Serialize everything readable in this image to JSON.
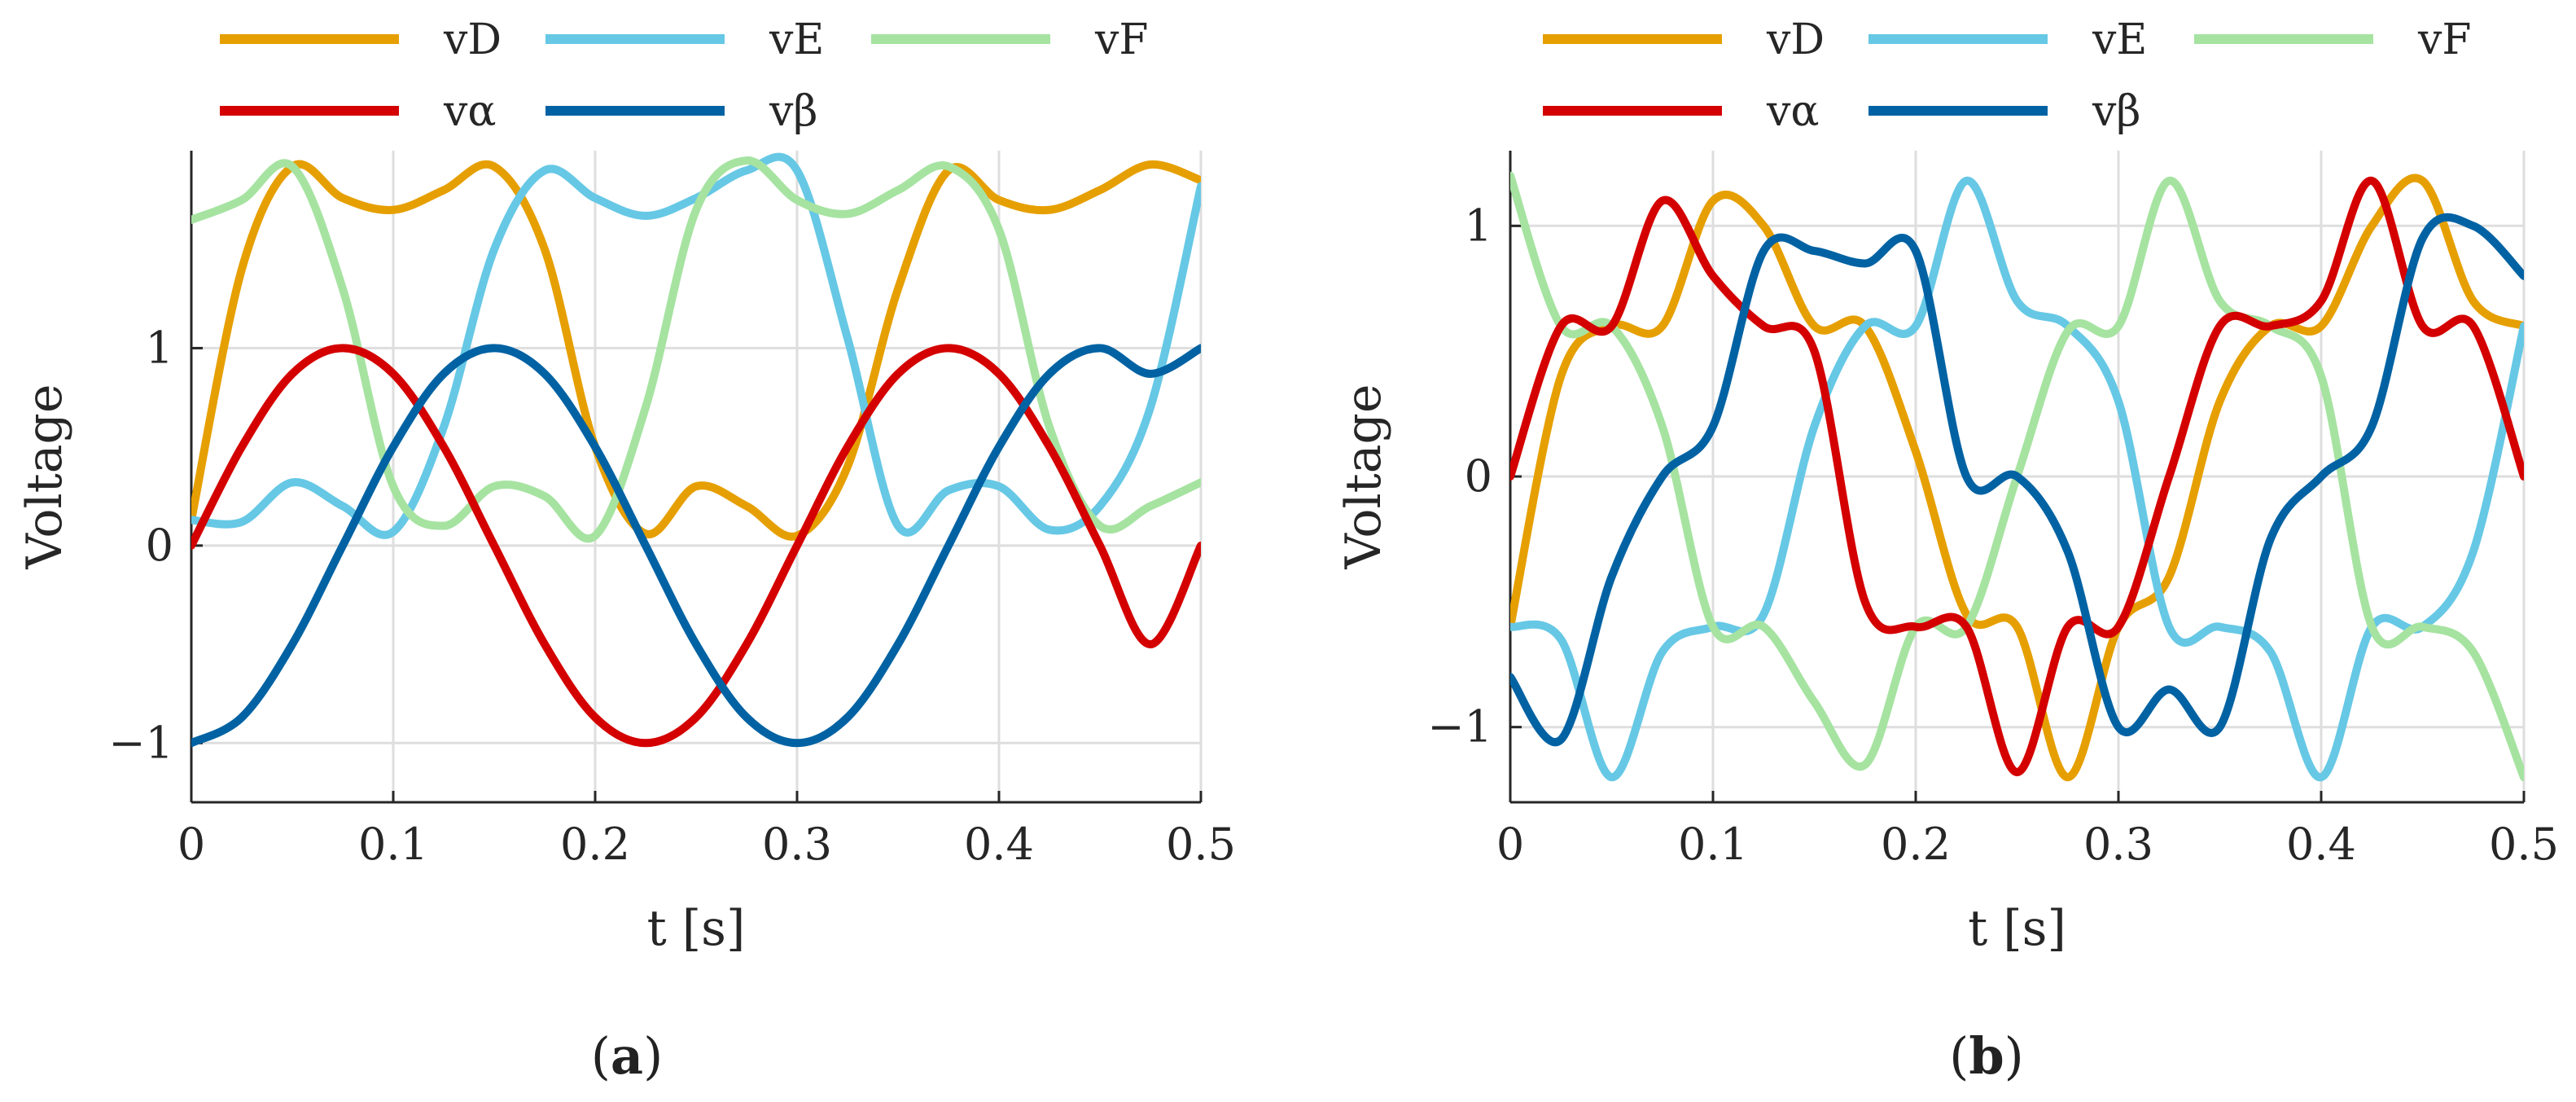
{
  "chart_data": [
    {
      "type": "line",
      "panel_label": "a",
      "xlabel": "t [s]",
      "ylabel": "Voltage",
      "xlim": [
        0,
        0.5
      ],
      "ylim": [
        -1.3,
        2.0
      ],
      "xticks": [
        0,
        0.1,
        0.2,
        0.3,
        0.4,
        0.5
      ],
      "xtick_labels": [
        "0",
        "0.1",
        "0.2",
        "0.3",
        "0.4",
        "0.5"
      ],
      "yticks": [
        -1,
        0,
        1
      ],
      "ytick_labels": [
        "−1",
        "0",
        "1"
      ],
      "grid": true,
      "legend_position": "top",
      "legend_columns": 3,
      "x": [
        0,
        0.025,
        0.05,
        0.075,
        0.1,
        0.125,
        0.15,
        0.175,
        0.2,
        0.225,
        0.25,
        0.275,
        0.3,
        0.325,
        0.35,
        0.375,
        0.4,
        0.425,
        0.45,
        0.475,
        0.5
      ],
      "series": [
        {
          "name": "vD",
          "color": "#E69F00",
          "values": [
            0.13,
            1.4,
            1.92,
            1.76,
            1.7,
            1.8,
            1.92,
            1.5,
            0.5,
            0.06,
            0.3,
            0.2,
            0.05,
            0.4,
            1.3,
            1.9,
            1.75,
            1.7,
            1.8,
            1.93,
            1.85
          ]
        },
        {
          "name": "vE",
          "color": "#66C8E5",
          "values": [
            0.13,
            0.12,
            0.32,
            0.2,
            0.07,
            0.6,
            1.5,
            1.9,
            1.76,
            1.67,
            1.76,
            1.9,
            1.9,
            1.05,
            0.1,
            0.28,
            0.3,
            0.08,
            0.2,
            0.7,
            1.82
          ]
        },
        {
          "name": "vF",
          "color": "#A6E3A1",
          "values": [
            1.65,
            1.75,
            1.92,
            1.3,
            0.3,
            0.1,
            0.3,
            0.25,
            0.05,
            0.7,
            1.7,
            1.95,
            1.75,
            1.68,
            1.8,
            1.92,
            1.6,
            0.6,
            0.1,
            0.2,
            0.32
          ]
        },
        {
          "name": "vα",
          "color": "#D40000",
          "values": [
            0,
            0.5,
            0.87,
            1.0,
            0.87,
            0.5,
            0,
            -0.5,
            -0.87,
            -1.0,
            -0.87,
            -0.5,
            0,
            0.5,
            0.87,
            1.0,
            0.87,
            0.5,
            0,
            -0.5,
            0
          ]
        },
        {
          "name": "vβ",
          "color": "#0062A3",
          "values": [
            -1.0,
            -0.87,
            -0.5,
            0,
            0.5,
            0.87,
            1.0,
            0.87,
            0.5,
            0,
            -0.5,
            -0.87,
            -1.0,
            -0.87,
            -0.5,
            0,
            0.5,
            0.87,
            1.0,
            0.87,
            1.0
          ]
        }
      ]
    },
    {
      "type": "line",
      "panel_label": "b",
      "xlabel": "t [s]",
      "ylabel": "Voltage",
      "xlim": [
        0,
        0.5
      ],
      "ylim": [
        -1.3,
        1.3
      ],
      "xticks": [
        0,
        0.1,
        0.2,
        0.3,
        0.4,
        0.5
      ],
      "xtick_labels": [
        "0",
        "0.1",
        "0.2",
        "0.3",
        "0.4",
        "0.5"
      ],
      "yticks": [
        -1,
        0,
        1
      ],
      "ytick_labels": [
        "−1",
        "0",
        "1"
      ],
      "grid": true,
      "legend_position": "top",
      "legend_columns": 3,
      "x": [
        0,
        0.025,
        0.05,
        0.075,
        0.1,
        0.125,
        0.15,
        0.175,
        0.2,
        0.225,
        0.25,
        0.275,
        0.3,
        0.325,
        0.35,
        0.375,
        0.4,
        0.425,
        0.45,
        0.475,
        0.5
      ],
      "series": [
        {
          "name": "vD",
          "color": "#E69F00",
          "values": [
            -0.6,
            0.4,
            0.6,
            0.6,
            1.1,
            1.0,
            0.6,
            0.6,
            0.1,
            -0.55,
            -0.6,
            -1.2,
            -0.6,
            -0.4,
            0.3,
            0.6,
            0.6,
            1.0,
            1.18,
            0.7,
            0.6
          ]
        },
        {
          "name": "vE",
          "color": "#66C8E5",
          "values": [
            -0.6,
            -0.65,
            -1.2,
            -0.7,
            -0.6,
            -0.55,
            0.2,
            0.6,
            0.6,
            1.18,
            0.7,
            0.6,
            0.3,
            -0.6,
            -0.6,
            -0.7,
            -1.2,
            -0.6,
            -0.6,
            -0.3,
            0.6
          ]
        },
        {
          "name": "vF",
          "color": "#A6E3A1",
          "values": [
            1.2,
            0.6,
            0.6,
            0.2,
            -0.6,
            -0.6,
            -0.9,
            -1.15,
            -0.6,
            -0.6,
            0.0,
            0.58,
            0.6,
            1.18,
            0.7,
            0.6,
            0.4,
            -0.6,
            -0.6,
            -0.7,
            -1.2
          ]
        },
        {
          "name": "vα",
          "color": "#D40000",
          "values": [
            0,
            0.6,
            0.6,
            1.1,
            0.8,
            0.6,
            0.5,
            -0.5,
            -0.6,
            -0.6,
            -1.18,
            -0.6,
            -0.6,
            0.0,
            0.6,
            0.6,
            0.7,
            1.18,
            0.6,
            0.6,
            0
          ]
        },
        {
          "name": "vβ",
          "color": "#0062A3",
          "values": [
            -0.8,
            -1.05,
            -0.4,
            0,
            0.2,
            0.9,
            0.9,
            0.85,
            0.9,
            0.0,
            0.0,
            -0.3,
            -1.0,
            -0.85,
            -1.0,
            -0.25,
            0.0,
            0.2,
            0.95,
            1.0,
            0.8
          ]
        }
      ]
    }
  ]
}
